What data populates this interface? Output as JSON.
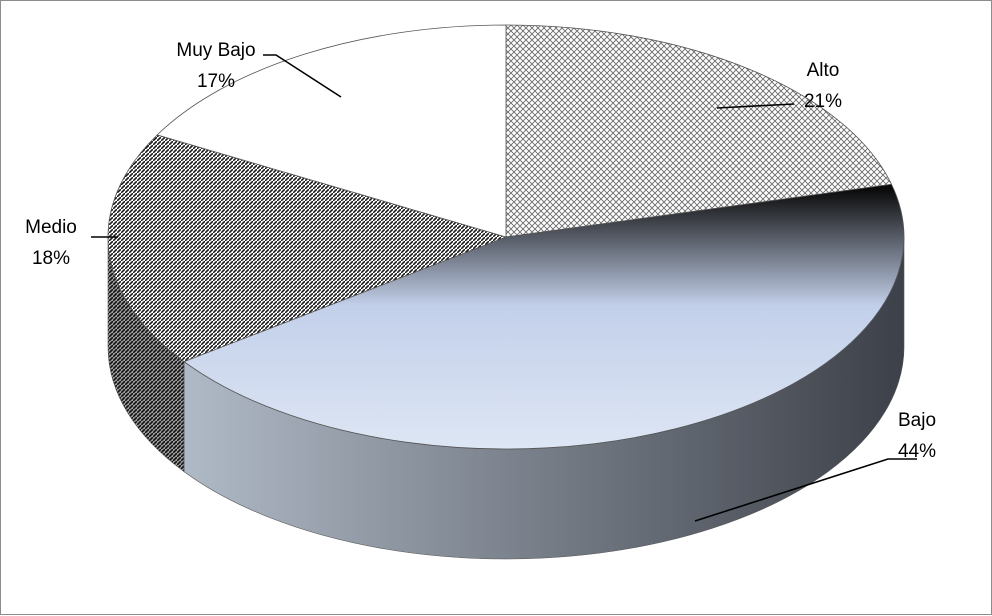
{
  "chart_data": {
    "type": "pie",
    "title": "",
    "slices": [
      {
        "label": "Alto",
        "value": 21,
        "value_label": "21%",
        "fill": "crosshatch"
      },
      {
        "label": "Bajo",
        "value": 44,
        "value_label": "44%",
        "fill": "gradient"
      },
      {
        "label": "Medio",
        "value": 18,
        "value_label": "18%",
        "fill": "diagonal-stripes"
      },
      {
        "label": "Muy Bajo",
        "value": 17,
        "value_label": "17%",
        "fill": "white"
      }
    ],
    "colors": {
      "outline": "#555555",
      "bajo_top_light": "#dde6f4",
      "bajo_top_mid": "#c3d0ea",
      "bajo_top_dark": "#0a0a0a",
      "bajo_side_light": "#b5bfcc",
      "bajo_side_dark": "#3c4048"
    },
    "style": "3d-pie",
    "legend": "none"
  }
}
